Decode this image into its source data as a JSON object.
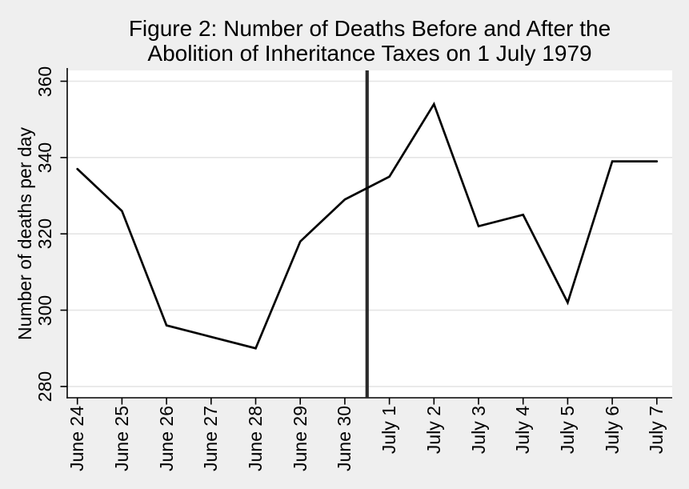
{
  "figure": {
    "title_line1": "Figure 2: Number of Deaths Before and After the",
    "title_line2": "Abolition of Inheritance Taxes on 1 July 1979"
  },
  "chart_data": {
    "type": "line",
    "title": "Figure 2: Number of Deaths Before and After the Abolition of Inheritance Taxes on 1 July 1979",
    "xlabel": "",
    "ylabel": "Number of deaths per day",
    "categories": [
      "June 24",
      "June 25",
      "June 26",
      "June 27",
      "June 28",
      "June 29",
      "June 30",
      "July 1",
      "July 2",
      "July 3",
      "July 4",
      "July 5",
      "July 6",
      "July 7"
    ],
    "series": [
      {
        "name": "Number of deaths per day",
        "values": [
          337,
          326,
          296,
          293,
          290,
          318,
          329,
          335,
          354,
          322,
          325,
          302,
          339,
          339
        ]
      }
    ],
    "ylim": [
      280,
      360
    ],
    "yticks": [
      360,
      340,
      320,
      300,
      280
    ],
    "grid": "horizontal-only",
    "legend": "none",
    "x_tick_label_rotation_deg": 90,
    "y_tick_label_rotation_deg": 90,
    "event_line": {
      "x_index": 6.5,
      "position": "between June 30 and July 1",
      "meaning": "1 July 1979 abolition of inheritance taxes"
    },
    "colors": {
      "line": "#000000",
      "event_line": "#2b2b2b",
      "axis": "#000000",
      "grid": "#e5e5e5",
      "plot_bg": "#ffffff",
      "figure_bg": "#efefef"
    }
  }
}
